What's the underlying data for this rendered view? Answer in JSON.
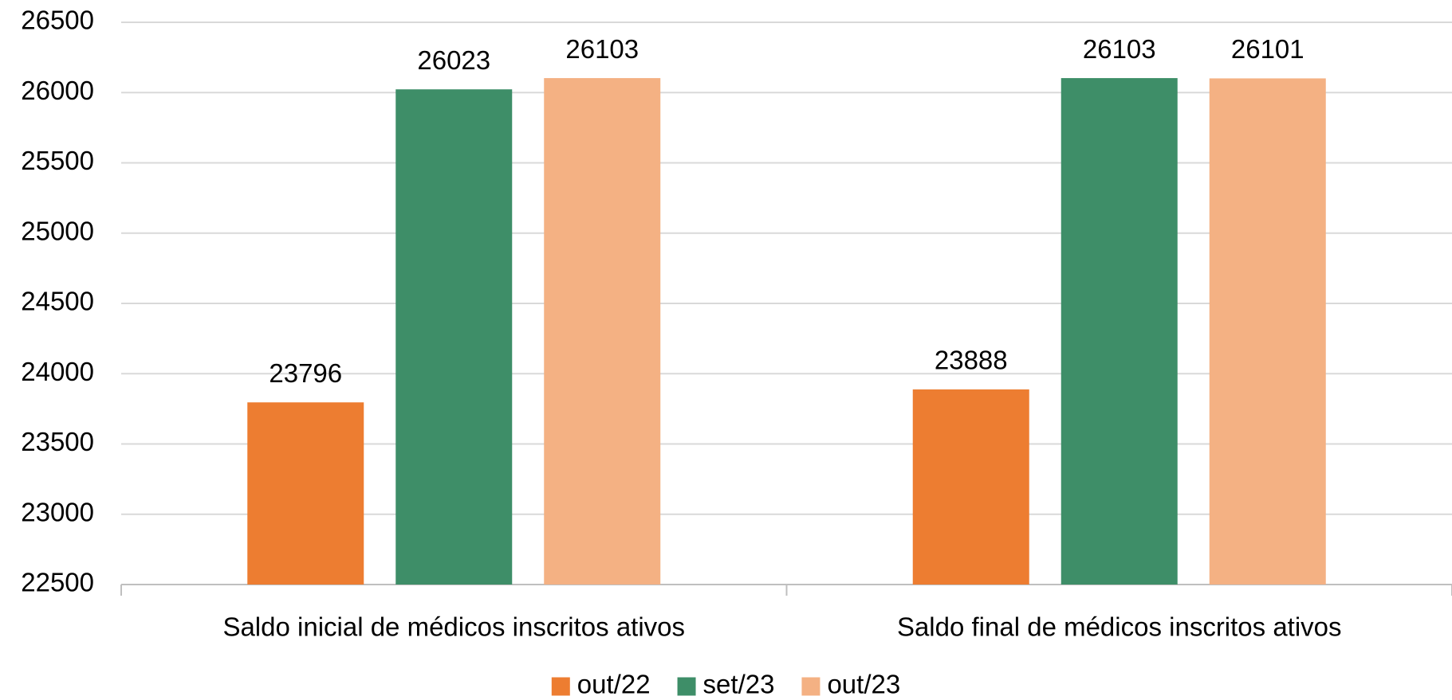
{
  "chart_data": {
    "type": "bar",
    "categories": [
      "Saldo inicial de médicos inscritos ativos",
      "Saldo final de médicos inscritos ativos"
    ],
    "series": [
      {
        "name": "out/22",
        "color": "#ED7D31",
        "values": [
          23796,
          23888
        ]
      },
      {
        "name": "set/23",
        "color": "#3E8E68",
        "values": [
          26023,
          26103
        ]
      },
      {
        "name": "out/23",
        "color": "#F4B183",
        "values": [
          26103,
          26101
        ]
      }
    ],
    "ylim": [
      22500,
      26500
    ],
    "yticks": [
      22500,
      23000,
      23500,
      24000,
      24500,
      25000,
      25500,
      26000,
      26500
    ],
    "grid": true,
    "legend": "bottom"
  }
}
